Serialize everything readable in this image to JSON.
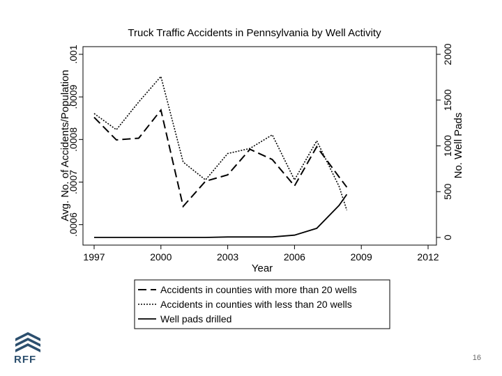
{
  "page": {
    "slide_number": "16",
    "logo_text": "RFF"
  },
  "chart_data": {
    "type": "line",
    "title": "Truck Traffic Accidents in Pennsylvania by Well Activity",
    "xlabel": "Year",
    "ylabel_left": "Avg. No. of Accidents/Population",
    "ylabel_right": "No. Well Pads",
    "xlim": [
      1997,
      2012
    ],
    "xticks": [
      "1997",
      "2000",
      "2003",
      "2006",
      "2009",
      "2012"
    ],
    "ylim_left": [
      0.00057,
      0.001
    ],
    "yticks_left": [
      ".0006",
      ".0007",
      ".0008",
      ".0009",
      ".001"
    ],
    "ylim_right": [
      0,
      2000
    ],
    "yticks_right": [
      "0",
      "500",
      "1000",
      "1500",
      "2000"
    ],
    "grid": false,
    "legend_position": "bottom",
    "series": [
      {
        "name": "Accidents in counties with more than 20 wells",
        "axis": "left",
        "style": "dashed",
        "x": [
          1997,
          1998,
          1999,
          2000,
          2001,
          2002,
          2003,
          2004,
          2005,
          2006,
          2007,
          2008,
          2008.35
        ],
        "y": [
          0.000852,
          0.000799,
          0.000803,
          0.000869,
          0.000643,
          0.000702,
          0.000717,
          0.000777,
          0.000753,
          0.000691,
          0.000783,
          0.000712,
          0.000688
        ]
      },
      {
        "name": "Accidents in counties with less than 20 wells",
        "axis": "left",
        "style": "dotted",
        "x": [
          1997,
          1998,
          1999,
          2000,
          2001,
          2002,
          2003,
          2004,
          2005,
          2006,
          2007,
          2008,
          2008.35
        ],
        "y": [
          0.000861,
          0.000823,
          0.000888,
          0.000948,
          0.000747,
          0.000705,
          0.000767,
          0.000779,
          0.000811,
          0.000705,
          0.000797,
          0.00069,
          0.000634
        ]
      },
      {
        "name": "Well pads drilled",
        "axis": "right",
        "style": "solid",
        "x": [
          1997,
          1998,
          1999,
          2000,
          2001,
          2002,
          2003,
          2004,
          2005,
          2006,
          2007,
          2008,
          2008.35
        ],
        "y": [
          0,
          0,
          0,
          0,
          0,
          0,
          5,
          5,
          5,
          25,
          100,
          350,
          470
        ]
      }
    ]
  }
}
